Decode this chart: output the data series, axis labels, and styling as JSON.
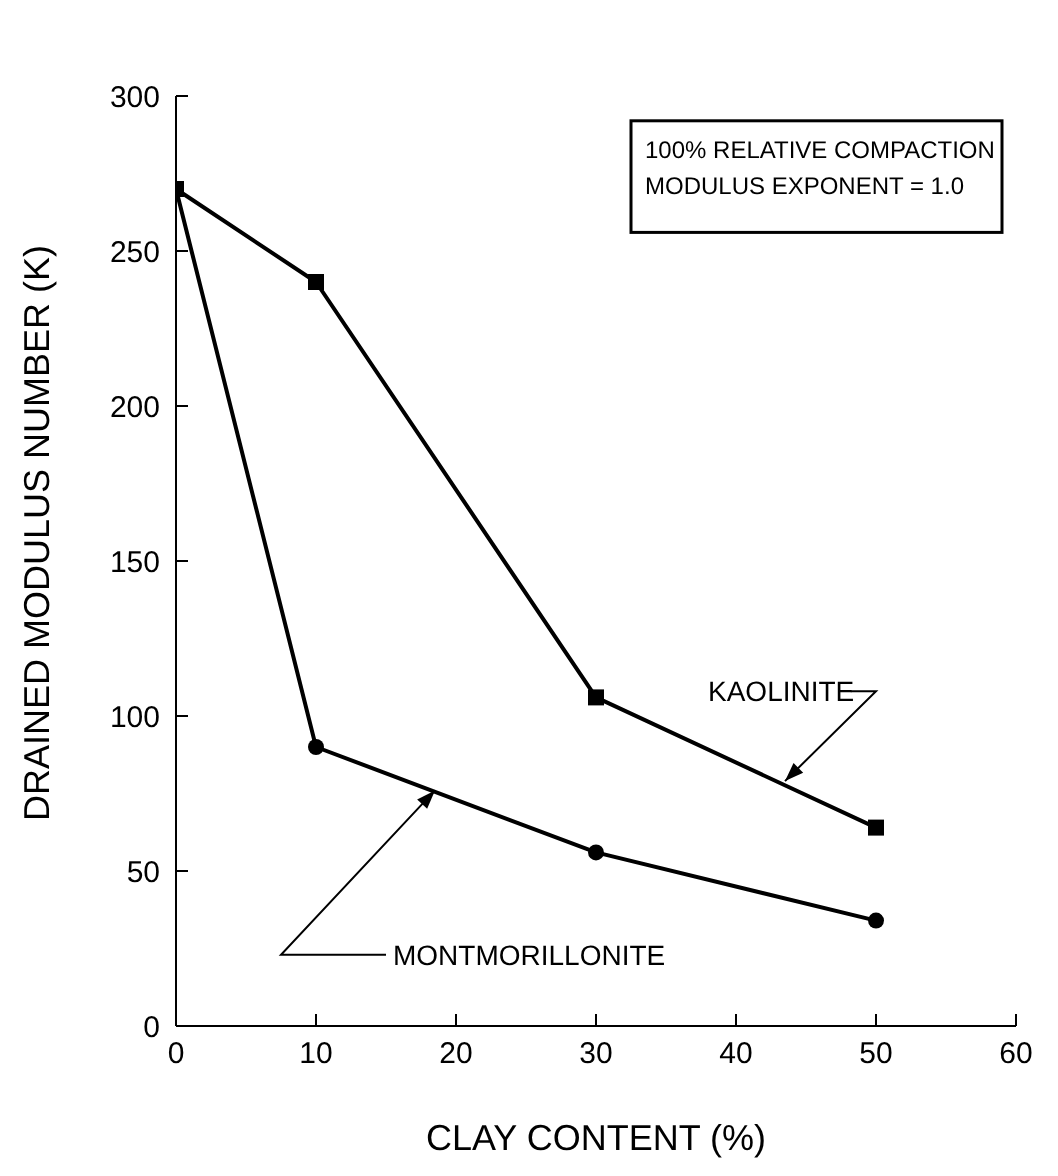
{
  "chart_data": {
    "type": "line",
    "xlabel": "CLAY CONTENT (%)",
    "ylabel": "DRAINED MODULUS NUMBER (K)",
    "annotations": [
      "100% RELATIVE COMPACTION",
      "MODULUS EXPONENT = 1.0"
    ],
    "x": [
      0,
      10,
      30,
      50
    ],
    "series": [
      {
        "name": "KAOLINITE",
        "color": "#000000",
        "marker": "square",
        "values": [
          270,
          240,
          106,
          64
        ]
      },
      {
        "name": "MONTMORILLONITE",
        "color": "#000000",
        "marker": "circle",
        "values": [
          270,
          90,
          56,
          34
        ]
      }
    ],
    "xlim": [
      0,
      60
    ],
    "xticks": [
      0,
      10,
      20,
      30,
      40,
      50,
      60
    ],
    "ylim": [
      0,
      300
    ],
    "yticks": [
      0,
      50,
      100,
      150,
      200,
      250,
      300
    ],
    "grid": false,
    "legend": false,
    "line_style": "solid"
  }
}
